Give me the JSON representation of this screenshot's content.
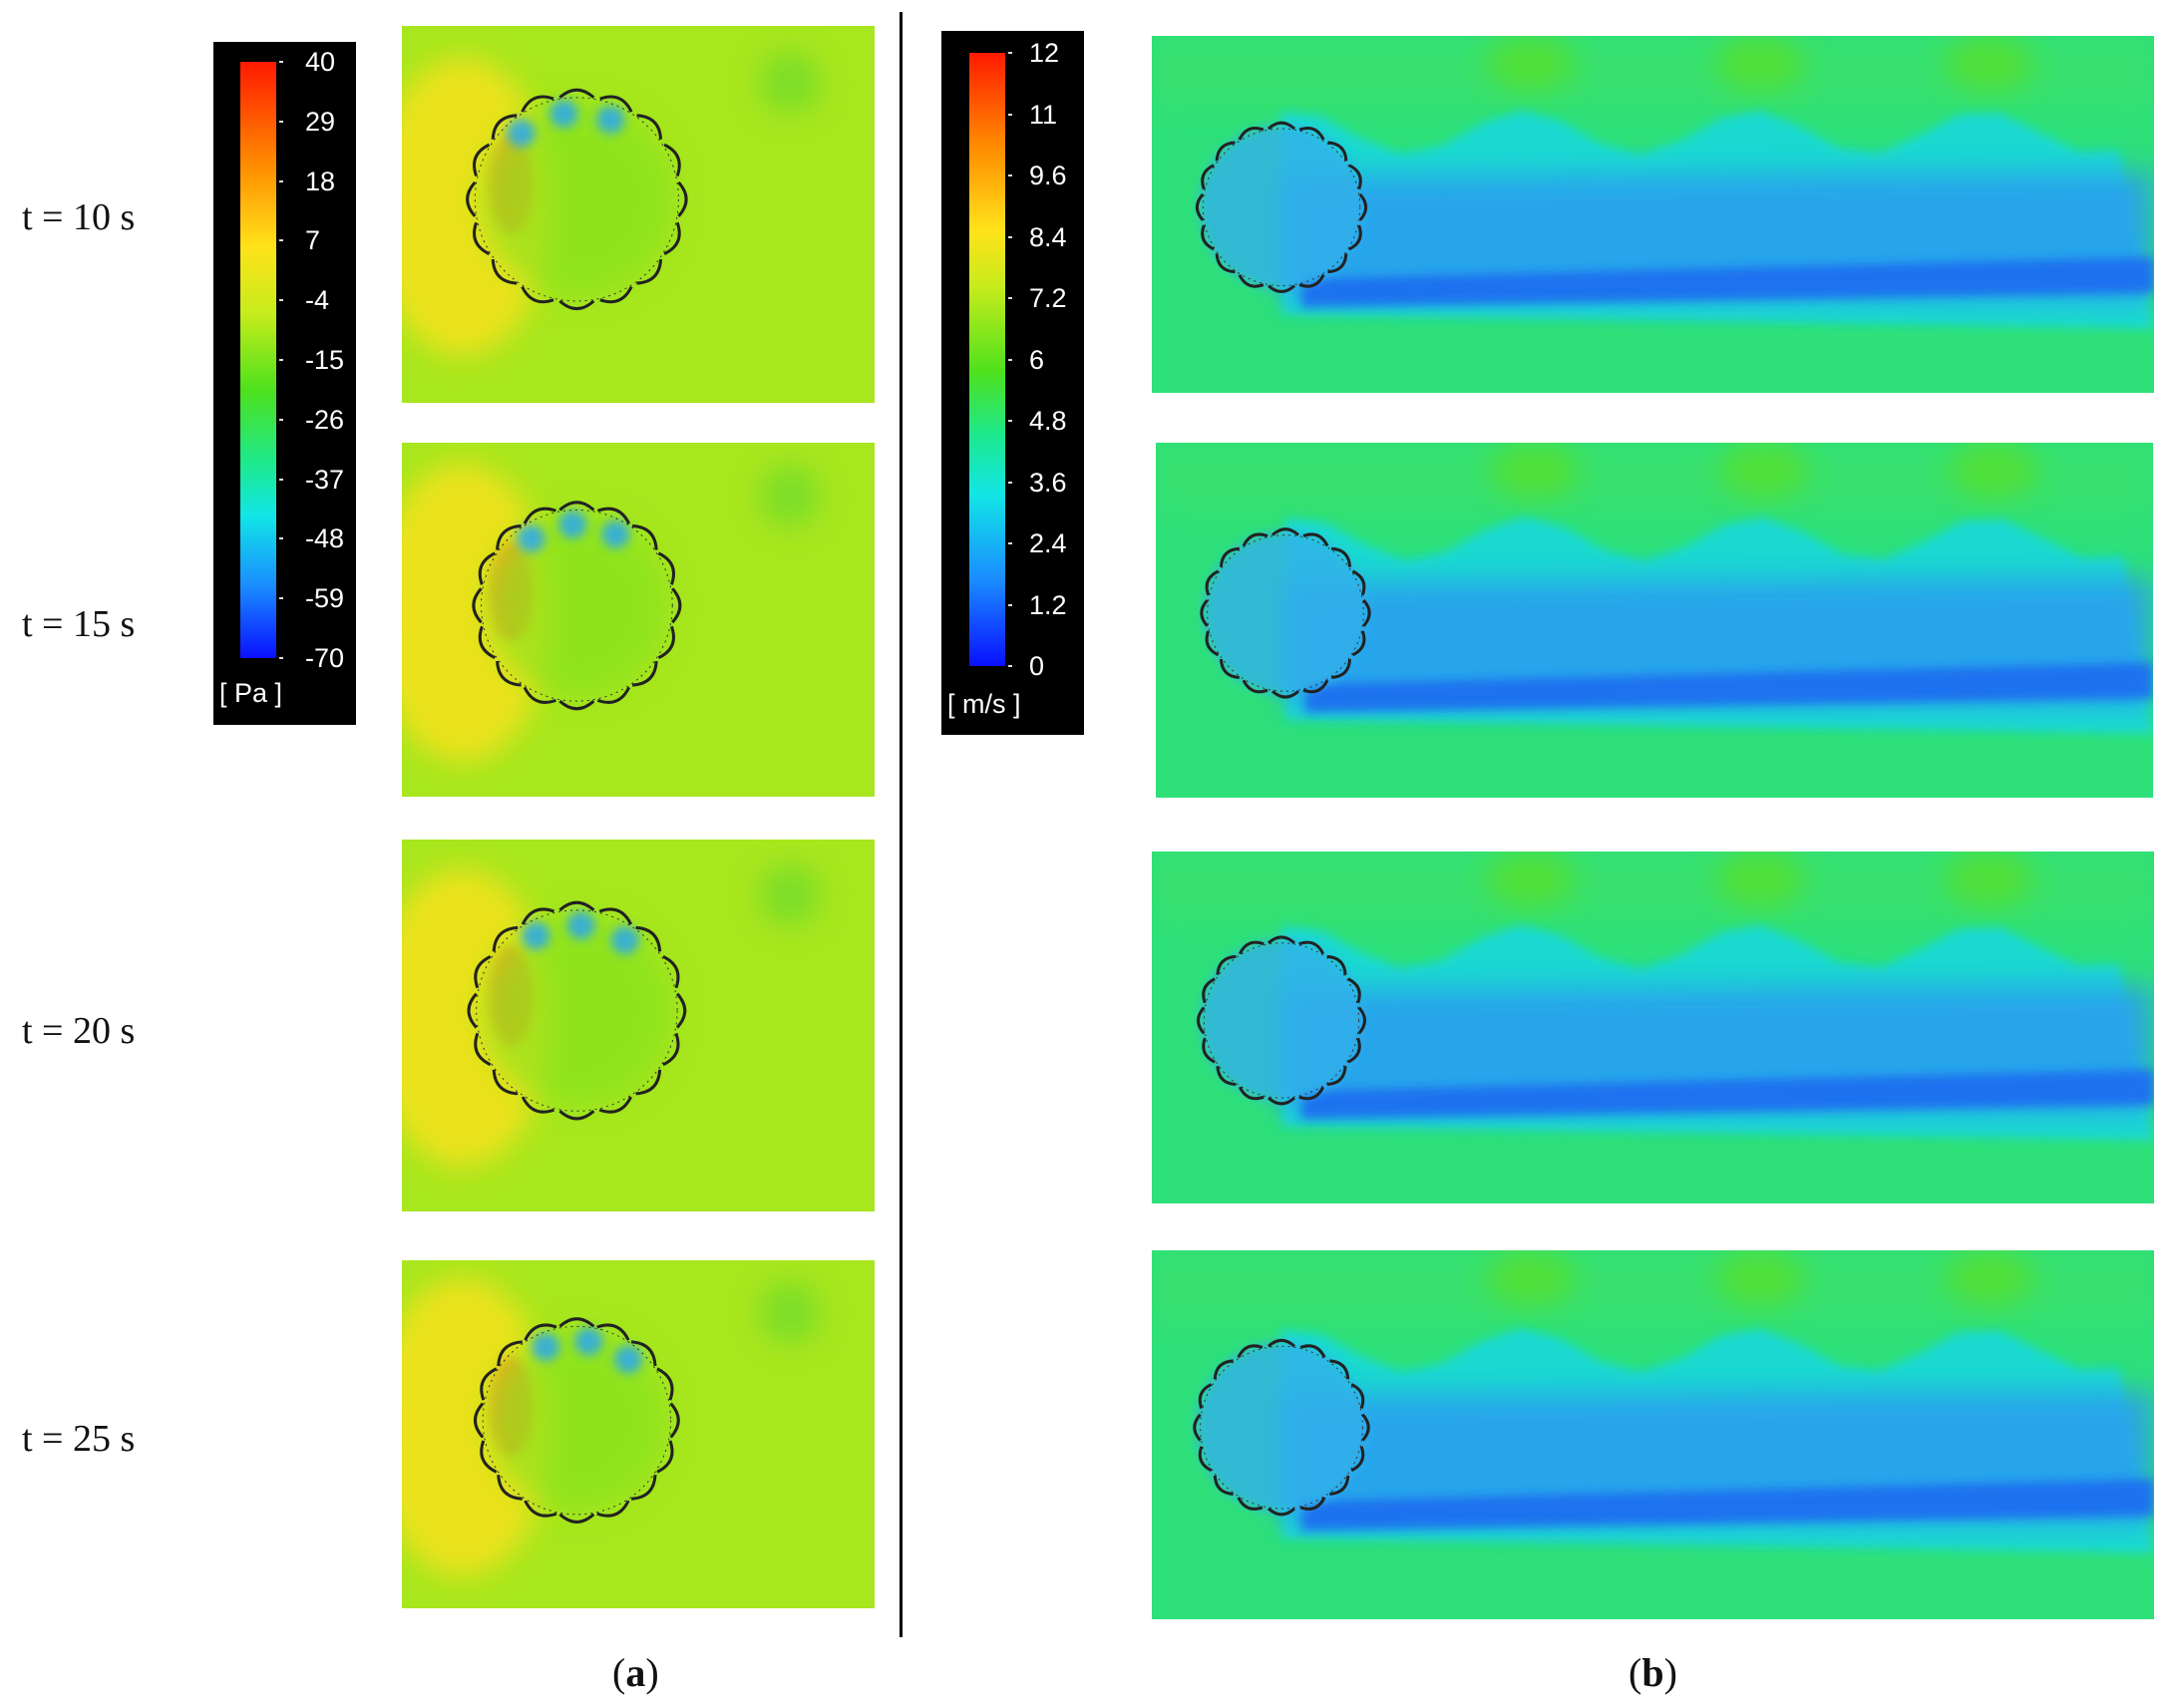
{
  "time_labels": [
    "t = 10 s",
    "t = 15 s",
    "t = 20 s",
    "t = 25 s"
  ],
  "pressure_colorbar": {
    "ticks": [
      "40",
      "29",
      "18",
      "7",
      "-4",
      "-15",
      "-26",
      "-37",
      "-48",
      "-59",
      "-70"
    ],
    "unit": "[ Pa ]"
  },
  "velocity_colorbar": {
    "ticks": [
      "12",
      "11",
      "9.6",
      "8.4",
      "7.2",
      "6",
      "4.8",
      "3.6",
      "2.4",
      "1.2",
      "0"
    ],
    "unit": "[ m/s ]"
  },
  "sublabels": {
    "a_open": "(",
    "a_letter": "a",
    "a_close": ")",
    "b_open": "(",
    "b_letter": "b",
    "b_close": ")"
  },
  "colors": {
    "pressure_field": "#a8e61e",
    "velocity_field": "#2ee07a",
    "wake": "#1b6cf0",
    "high_pressure": "#f6a11a",
    "blade": "#222222"
  }
}
